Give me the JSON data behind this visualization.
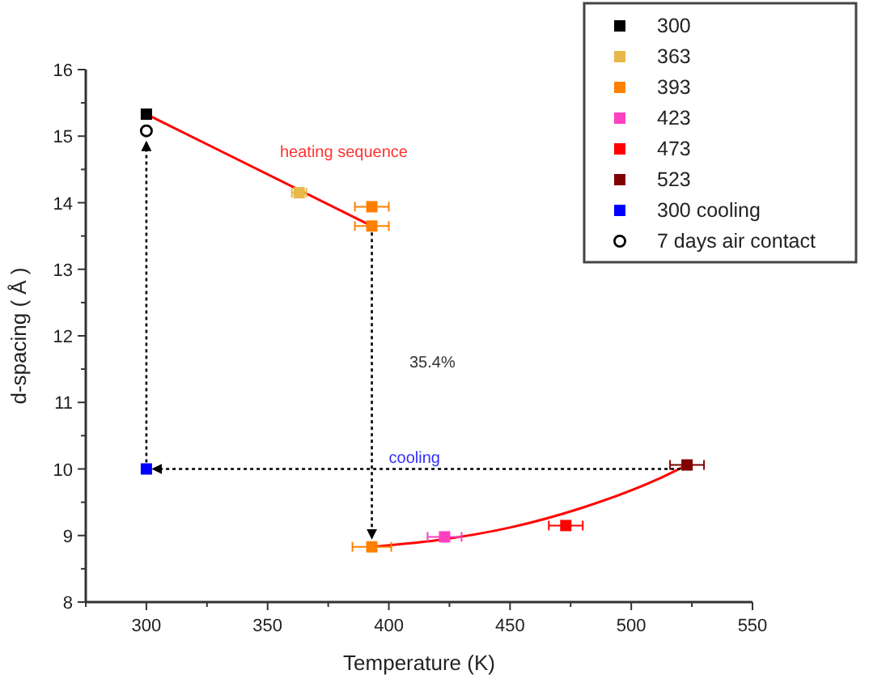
{
  "chart_data": {
    "type": "scatter",
    "xlabel": "Temperature (K)",
    "ylabel": "d-spacing ( Å )",
    "xlim": [
      275,
      550
    ],
    "ylim": [
      8,
      16
    ],
    "xticks": [
      {
        "value": 275,
        "label": null
      },
      300,
      {
        "value": 325,
        "label": null
      },
      350,
      {
        "value": 375,
        "label": null
      },
      400,
      {
        "value": 425,
        "label": null
      },
      450,
      {
        "value": 475,
        "label": null
      },
      500,
      {
        "value": 525,
        "label": null
      },
      550
    ],
    "yticks": [
      8,
      {
        "value": 8.5,
        "label": null
      },
      9,
      {
        "value": 9.5,
        "label": null
      },
      10,
      {
        "value": 10.5,
        "label": null
      },
      11,
      {
        "value": 11.5,
        "label": null
      },
      12,
      {
        "value": 12.5,
        "label": null
      },
      13,
      {
        "value": 13.5,
        "label": null
      },
      14,
      {
        "value": 14.5,
        "label": null
      },
      15,
      {
        "value": 15.5,
        "label": null
      },
      16
    ],
    "legend": "top right",
    "series": [
      {
        "name": "300",
        "color": "#000000",
        "marker": "square",
        "x": [
          300
        ],
        "values": [
          15.33
        ]
      },
      {
        "name": "363",
        "color": "#e8b84a",
        "marker": "square",
        "x": [
          363
        ],
        "values": [
          14.15
        ],
        "xerrors": [
          3
        ]
      },
      {
        "name": "393",
        "color": "#ff8000",
        "marker": "square",
        "x": [
          393,
          393,
          393
        ],
        "values": [
          13.94,
          13.65,
          8.83
        ],
        "xerrors": [
          7,
          7,
          8
        ]
      },
      {
        "name": "423",
        "color": "#ff40c0",
        "marker": "square",
        "x": [
          423
        ],
        "values": [
          8.98
        ],
        "xerrors": [
          7
        ]
      },
      {
        "name": "473",
        "color": "#ff0000",
        "marker": "square",
        "x": [
          473
        ],
        "values": [
          9.15
        ],
        "xerrors": [
          7
        ]
      },
      {
        "name": "523",
        "color": "#800000",
        "marker": "square",
        "x": [
          523
        ],
        "values": [
          10.06
        ],
        "xerrors": [
          7
        ]
      },
      {
        "name": "300 cooling",
        "color": "#0000ff",
        "marker": "square",
        "x": [
          300
        ],
        "values": [
          10.0
        ]
      },
      {
        "name": "7 days air contact",
        "color": "#000000",
        "marker": "circle",
        "x": [
          300
        ],
        "values": [
          15.08
        ]
      },
      {
        "type": "line",
        "color": "#ff0000",
        "x": [
          300,
          393
        ],
        "values": [
          15.33,
          13.65
        ]
      },
      {
        "type": "line",
        "color": "#ff0000",
        "x": [
          393,
          420,
          450,
          480,
          510,
          523
        ],
        "values": [
          8.83,
          8.93,
          9.12,
          9.42,
          9.83,
          10.06
        ]
      },
      {
        "type": "line",
        "color": "#000000",
        "line_style": "dotted",
        "x": [
          300,
          300
        ],
        "values": [
          10.0,
          14.9
        ]
      },
      {
        "type": "line",
        "color": "#000000",
        "line_style": "dotted",
        "x": [
          393,
          393
        ],
        "values": [
          13.65,
          8.97
        ]
      },
      {
        "type": "line",
        "color": "#000000",
        "line_style": "dotted",
        "x": [
          523,
          303
        ],
        "values": [
          10.0,
          10.0
        ]
      }
    ],
    "annotations": [
      "heating sequence",
      "35.4%",
      {
        "text": "cooling",
        "x": 400,
        "y": 10
      }
    ]
  }
}
